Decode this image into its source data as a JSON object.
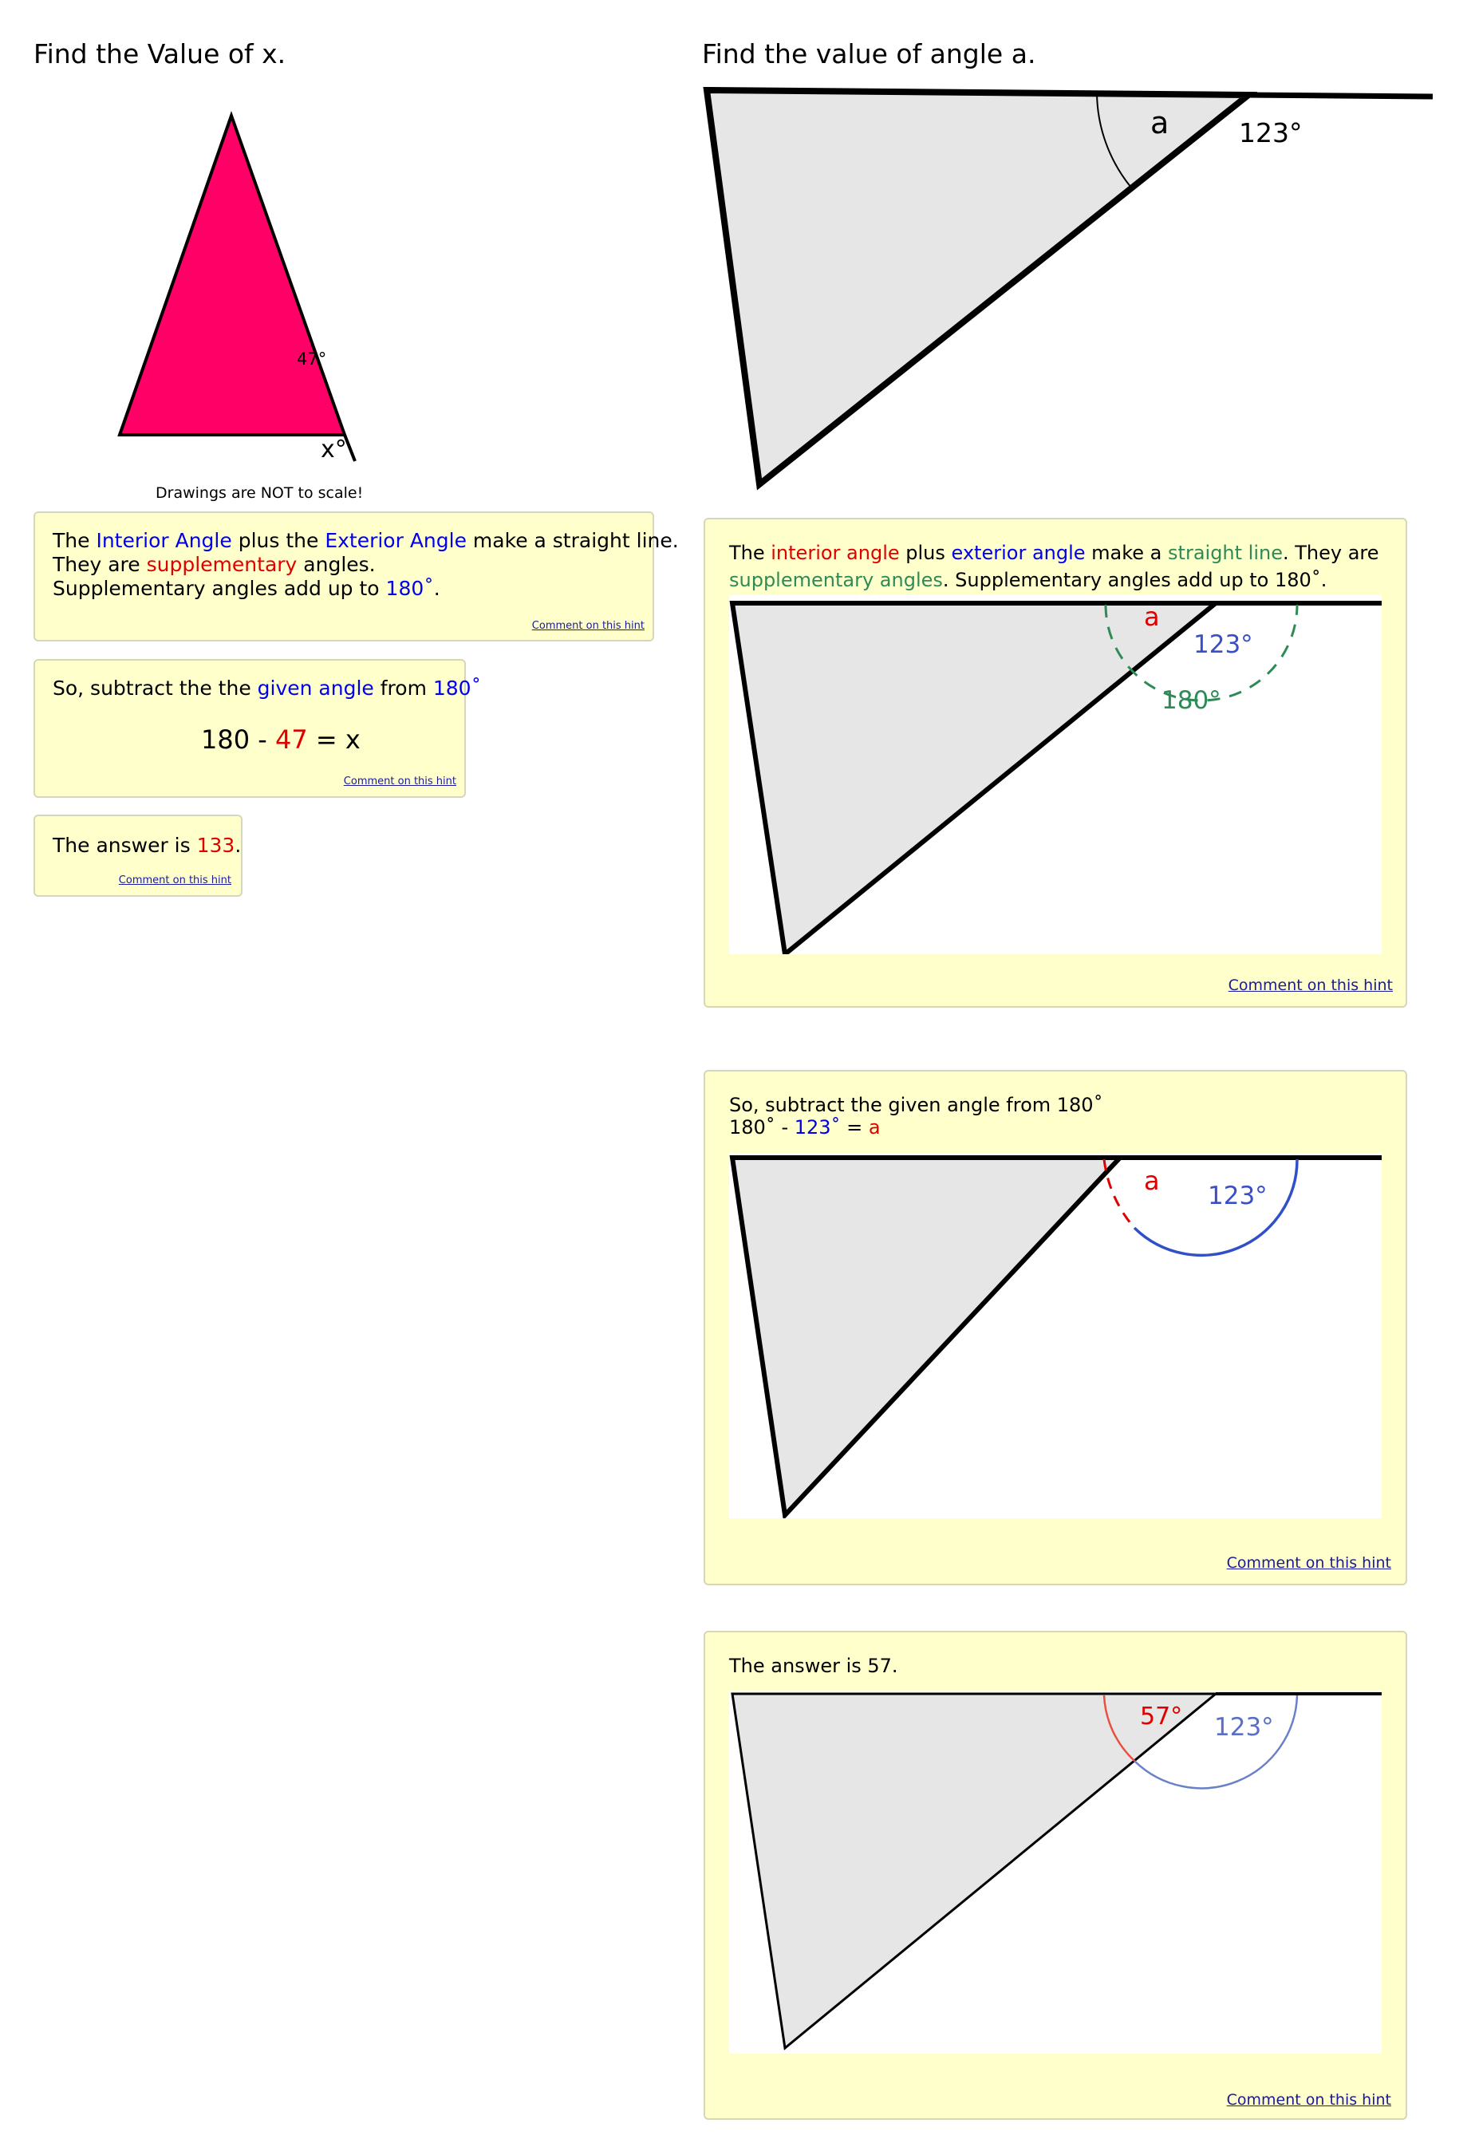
{
  "left": {
    "title": "Find the Value of x.",
    "angle_label": "47°",
    "x_label": "x°",
    "scale_note": "Drawings are NOT to scale!",
    "hint1": {
      "t1": "The ",
      "t2": "Interior Angle",
      "t3": " plus the ",
      "t4": "Exterior Angle",
      "t5": " make a straight line.",
      "t6": "They are ",
      "t7": "supplementary",
      "t8": " angles.",
      "t9": "Supplementary angles add up to ",
      "t10": "180˚",
      "t11": ".",
      "comment": "Comment on this hint"
    },
    "hint2": {
      "t1": "So, subtract the the ",
      "t2": "given angle",
      "t3": " from ",
      "t4": "180˚",
      "e1": "180 - ",
      "e2": "47",
      "e3": " = x",
      "comment": "Comment on this hint"
    },
    "hint3": {
      "t1": "The answer is ",
      "t2": "133",
      "t3": ".",
      "comment": "Comment on this hint"
    }
  },
  "right": {
    "title": "Find the value of angle a.",
    "fig_a": "a",
    "fig_ext": "123°",
    "hint1": {
      "t1": "The ",
      "t2": "interior angle",
      "t3": " plus ",
      "t4": "exterior angle",
      "t5": " make a ",
      "t6": "straight line",
      "t7": ". They are",
      "t8": "supplementary angles",
      "t9": ". Supplementary angles add up to 180˚.",
      "lbl_a": "a",
      "lbl_ext": "123°",
      "lbl_180": "180°",
      "comment": "Comment on this hint"
    },
    "hint2": {
      "line1": "So, subtract the given angle from 180˚",
      "e1": "180˚ - ",
      "e2": "123˚",
      "e3": " = ",
      "e4": "a",
      "lbl_a": "a",
      "lbl_ext": "123°",
      "comment": "Comment on this hint"
    },
    "hint3": {
      "line1": "The answer is 57.",
      "lbl_57": "57°",
      "lbl_ext": "123°",
      "comment": "Comment on this hint"
    }
  },
  "colors": {
    "triangle_fill": "#ff0066",
    "hint_bg": "#ffffcc",
    "gray_fill": "#e6e6e6",
    "blue_text": "#0000ee",
    "red_text": "#e00000",
    "green_text": "#2e8b57"
  }
}
